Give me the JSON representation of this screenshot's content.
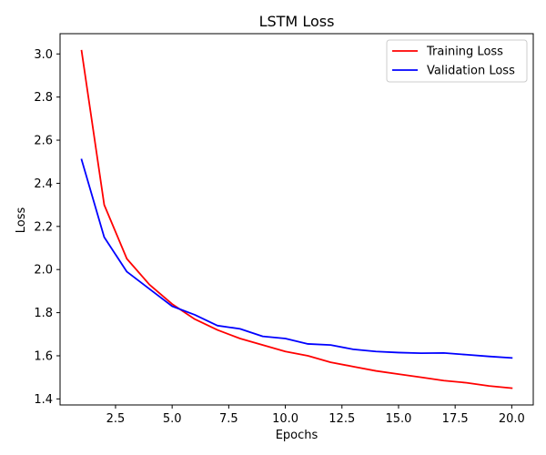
{
  "chart_data": {
    "type": "line",
    "title": "LSTM Loss",
    "xlabel": "Epochs",
    "ylabel": "Loss",
    "xlim": [
      0.05,
      20.95
    ],
    "ylim": [
      1.372,
      3.094
    ],
    "x_ticks": [
      2.5,
      5.0,
      7.5,
      10.0,
      12.5,
      15.0,
      17.5,
      20.0
    ],
    "x_tick_labels": [
      "2.5",
      "5.0",
      "7.5",
      "10.0",
      "12.5",
      "15.0",
      "17.5",
      "20.0"
    ],
    "y_ticks": [
      1.4,
      1.6,
      1.8,
      2.0,
      2.2,
      2.4,
      2.6,
      2.8,
      3.0
    ],
    "y_tick_labels": [
      "1.4",
      "1.6",
      "1.8",
      "2.0",
      "2.2",
      "2.4",
      "2.6",
      "2.8",
      "3.0"
    ],
    "grid": false,
    "legend_position": "top-right",
    "x": [
      1,
      2,
      3,
      4,
      5,
      6,
      7,
      8,
      9,
      10,
      11,
      12,
      13,
      14,
      15,
      16,
      17,
      18,
      19,
      20
    ],
    "series": [
      {
        "name": "Training Loss",
        "color": "#ff0000",
        "values": [
          3.015,
          2.3,
          2.05,
          1.93,
          1.84,
          1.77,
          1.72,
          1.68,
          1.65,
          1.62,
          1.6,
          1.57,
          1.55,
          1.53,
          1.515,
          1.5,
          1.485,
          1.475,
          1.46,
          1.45
        ]
      },
      {
        "name": "Validation Loss",
        "color": "#0000ff",
        "values": [
          2.51,
          2.15,
          1.99,
          1.91,
          1.83,
          1.79,
          1.74,
          1.725,
          1.69,
          1.68,
          1.655,
          1.65,
          1.63,
          1.62,
          1.615,
          1.612,
          1.613,
          1.605,
          1.597,
          1.59
        ]
      }
    ]
  }
}
